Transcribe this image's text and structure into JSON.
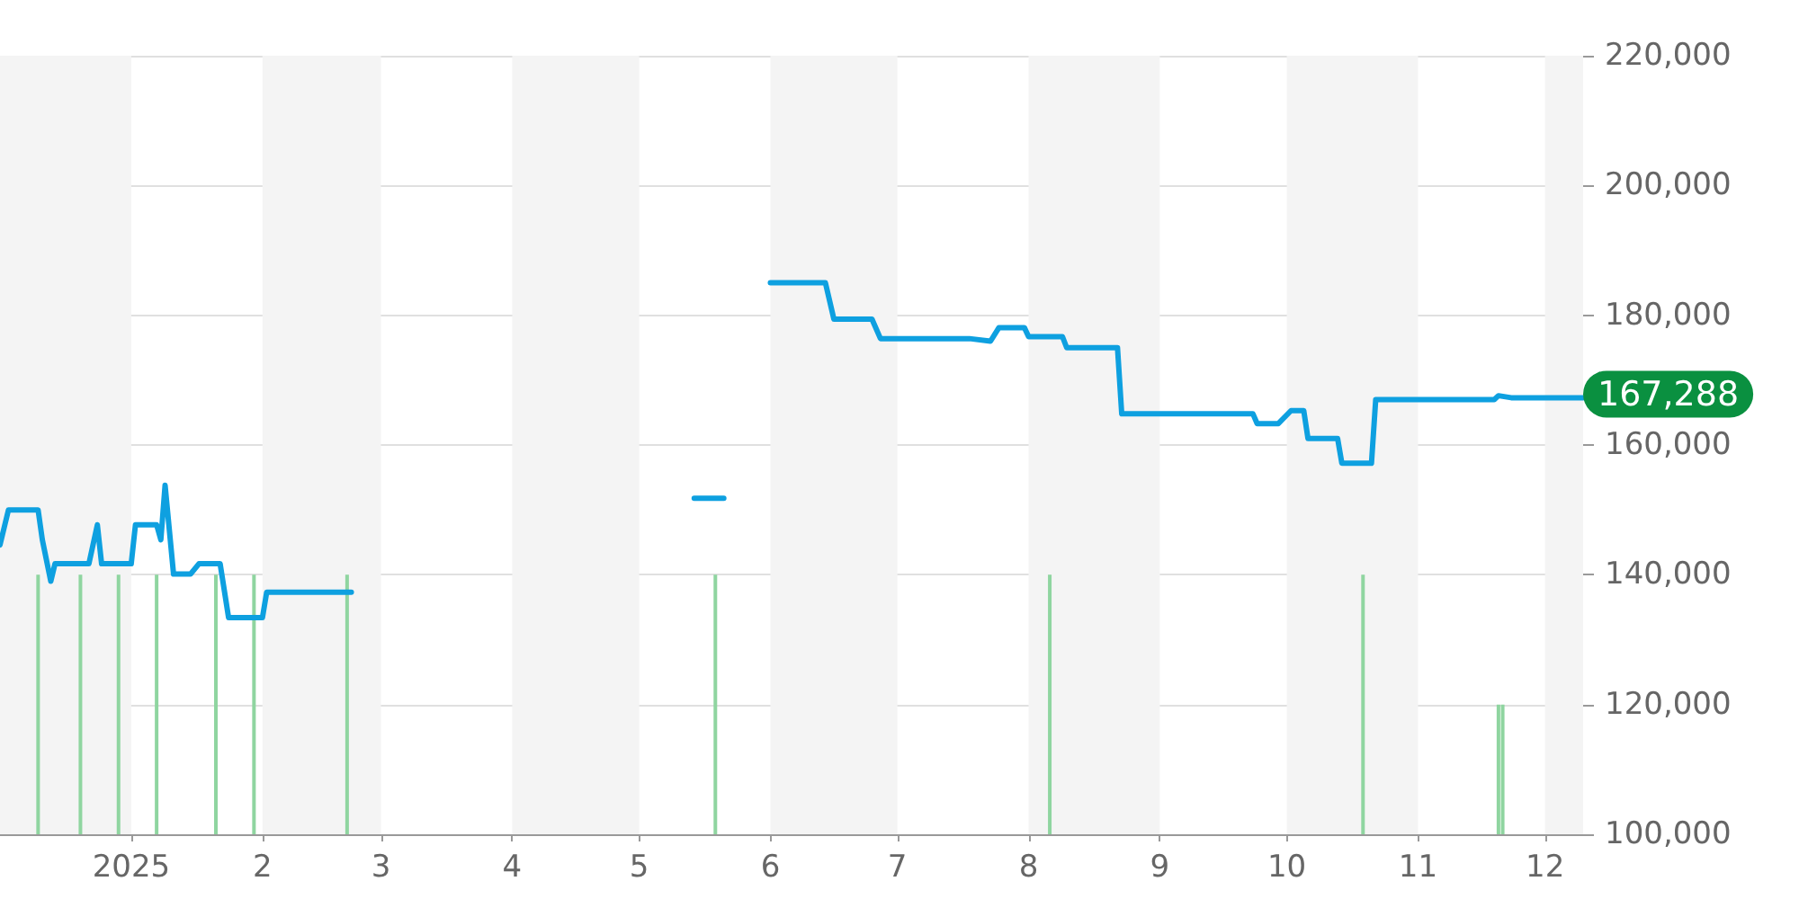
{
  "chart_data": {
    "type": "line",
    "xlim": [
      "2024-12-01",
      "2025-12-10"
    ],
    "xticks": [
      {
        "value": "2025-01-01",
        "label": "2025"
      },
      {
        "value": "2025-02-01",
        "label": "2"
      },
      {
        "value": "2025-03-01",
        "label": "3"
      },
      {
        "value": "2025-04-01",
        "label": "4"
      },
      {
        "value": "2025-05-01",
        "label": "5"
      },
      {
        "value": "2025-06-01",
        "label": "6"
      },
      {
        "value": "2025-07-01",
        "label": "7"
      },
      {
        "value": "2025-08-01",
        "label": "8"
      },
      {
        "value": "2025-09-01",
        "label": "9"
      },
      {
        "value": "2025-10-01",
        "label": "10"
      },
      {
        "value": "2025-11-01",
        "label": "11"
      },
      {
        "value": "2025-12-01",
        "label": "12"
      }
    ],
    "ylim": [
      100000,
      220000
    ],
    "yticks": [
      {
        "value": 100000,
        "label": "100,000"
      },
      {
        "value": 120000,
        "label": "120,000"
      },
      {
        "value": 140000,
        "label": "140,000"
      },
      {
        "value": 160000,
        "label": "160,000"
      },
      {
        "value": 180000,
        "label": "180,000"
      },
      {
        "value": 200000,
        "label": "200,000"
      },
      {
        "value": 220000,
        "label": "220,000"
      }
    ],
    "grid": "y",
    "marker": "none",
    "line_style": "solid",
    "series": [
      {
        "color": "#0ea0e0",
        "x": [
          "2024-12-01",
          "2024-12-03",
          "2024-12-10",
          "2024-12-11",
          "2024-12-13",
          "2024-12-14",
          "2024-12-22",
          "2024-12-24",
          "2024-12-25",
          "2025-01-01",
          "2025-01-02",
          "2025-01-07",
          "2025-01-08",
          "2025-01-09",
          "2025-01-11",
          "2025-01-15",
          "2025-01-17",
          "2025-01-22",
          "2025-01-24",
          "2025-02-01",
          "2025-02-02",
          "2025-02-22",
          "2025-03-15",
          "2025-05-14",
          "2025-05-21",
          "2025-05-25",
          "2025-06-01",
          "2025-06-14",
          "2025-06-16",
          "2025-06-25",
          "2025-06-27",
          "2025-07-18",
          "2025-07-23",
          "2025-07-25",
          "2025-07-31",
          "2025-08-01",
          "2025-08-09",
          "2025-08-10",
          "2025-08-22",
          "2025-08-23",
          "2025-09-23",
          "2025-09-24",
          "2025-09-29",
          "2025-10-02",
          "2025-10-05",
          "2025-10-06",
          "2025-10-13",
          "2025-10-14",
          "2025-10-21",
          "2025-10-22",
          "2025-11-19",
          "2025-11-20",
          "2025-11-23",
          "2025-12-10"
        ],
        "values": [
          144600,
          150000,
          150000,
          145400,
          139000,
          141700,
          141700,
          147700,
          141700,
          141700,
          147700,
          147700,
          145400,
          153800,
          140100,
          140100,
          141700,
          141700,
          133400,
          133400,
          137300,
          137300,
          null,
          151800,
          151800,
          null,
          185000,
          185000,
          179400,
          179400,
          176400,
          176400,
          176000,
          178100,
          178100,
          176700,
          176700,
          175000,
          175000,
          164800,
          164800,
          163300,
          163300,
          165300,
          165300,
          161000,
          161000,
          157200,
          157200,
          167000,
          167000,
          167600,
          167288,
          167288
        ]
      },
      {
        "type": "bar",
        "color": "#8fd5a0",
        "x": [
          "2024-12-10",
          "2024-12-20",
          "2024-12-29",
          "2025-01-07",
          "2025-01-21",
          "2025-01-30",
          "2025-02-21",
          "2025-05-19",
          "2025-08-06",
          "2025-10-19",
          "2025-11-20",
          "2025-11-21"
        ],
        "values": [
          140000,
          140000,
          140000,
          140000,
          140000,
          140000,
          140000,
          140000,
          140000,
          140000,
          120000,
          120000
        ]
      }
    ],
    "bands": [
      {
        "axis": "x",
        "from": "2024-12-01",
        "to": "2025-01-01",
        "color": "#f4f4f4"
      },
      {
        "axis": "x",
        "from": "2025-02-01",
        "to": "2025-03-01",
        "color": "#f4f4f4"
      },
      {
        "axis": "x",
        "from": "2025-04-01",
        "to": "2025-05-01",
        "color": "#f4f4f4"
      },
      {
        "axis": "x",
        "from": "2025-06-01",
        "to": "2025-07-01",
        "color": "#f4f4f4"
      },
      {
        "axis": "x",
        "from": "2025-08-01",
        "to": "2025-09-01",
        "color": "#f4f4f4"
      },
      {
        "axis": "x",
        "from": "2025-10-01",
        "to": "2025-11-01",
        "color": "#f4f4f4"
      },
      {
        "axis": "x",
        "from": "2025-12-01",
        "to": "2025-12-10",
        "color": "#f4f4f4"
      }
    ],
    "annotations": [
      {
        "text": "167,288",
        "x": "2025-12-10",
        "y": 167288
      }
    ]
  }
}
